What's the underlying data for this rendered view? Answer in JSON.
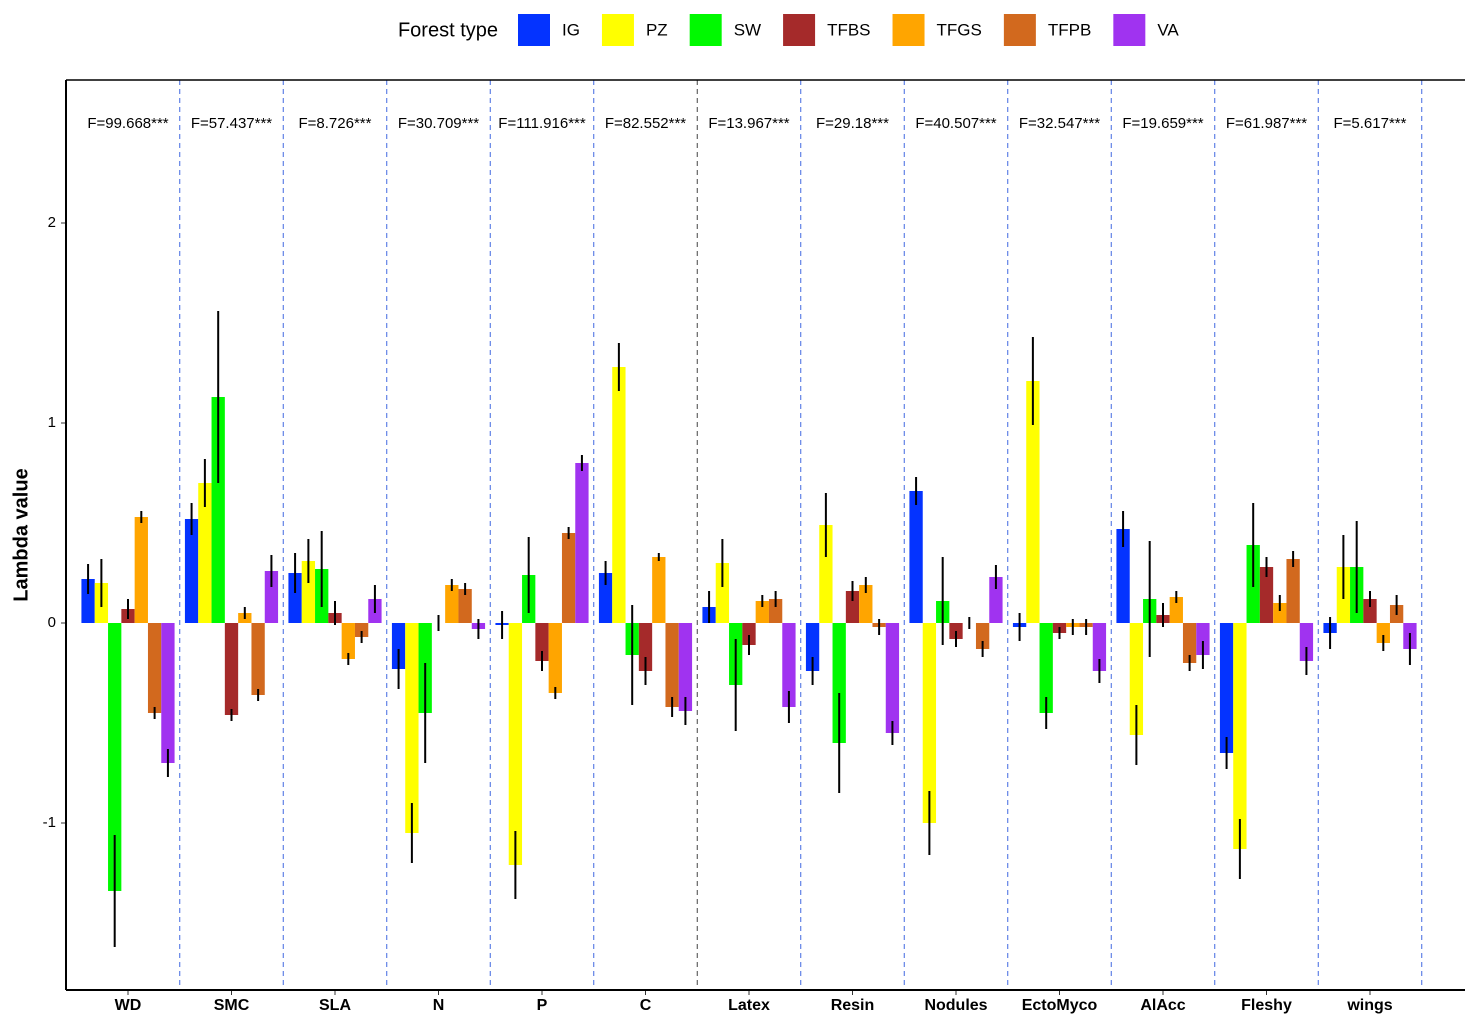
{
  "chart_data": {
    "type": "bar",
    "y_label": "Lambda value",
    "legend_title": "Forest type",
    "legend_position": "top",
    "categories": [
      "WD",
      "SMC",
      "SLA",
      "N",
      "P",
      "C",
      "Latex",
      "Resin",
      "Nodules",
      "EctoMyco",
      "AlAcc",
      "Fleshy",
      "wings"
    ],
    "annotations": [
      "F=99.668***",
      "F=57.437***",
      "F=8.726***",
      "F=30.709***",
      "F=111.916***",
      "F=82.552***",
      "F=13.967***",
      "F=29.18***",
      "F=40.507***",
      "F=32.547***",
      "F=19.659***",
      "F=61.987***",
      "F=5.617***"
    ],
    "ylim": [
      -1.835,
      2.715
    ],
    "yticks": [
      -1,
      0,
      1,
      2
    ],
    "series": [
      {
        "name": "IG",
        "color": "#0433ff",
        "values": [
          0.22,
          0.52,
          0.25,
          -0.23,
          -0.01,
          0.25,
          0.08,
          -0.24,
          0.66,
          -0.02,
          0.47,
          -0.65,
          -0.05
        ],
        "errors": [
          0.075,
          0.08,
          0.1,
          0.1,
          0.07,
          0.06,
          0.08,
          0.07,
          0.07,
          0.07,
          0.09,
          0.08,
          0.08
        ]
      },
      {
        "name": "PZ",
        "color": "#ffff00",
        "values": [
          0.2,
          0.7,
          0.31,
          -1.05,
          -1.21,
          1.28,
          0.3,
          0.49,
          -1.0,
          1.21,
          -0.56,
          -1.13,
          0.28
        ],
        "errors": [
          0.12,
          0.12,
          0.11,
          0.15,
          0.17,
          0.12,
          0.12,
          0.16,
          0.16,
          0.22,
          0.15,
          0.15,
          0.16
        ]
      },
      {
        "name": "SW",
        "color": "#00f900",
        "values": [
          -1.34,
          1.13,
          0.27,
          -0.45,
          0.24,
          -0.16,
          -0.31,
          -0.6,
          0.11,
          -0.45,
          0.12,
          0.39,
          0.28
        ],
        "errors": [
          0.28,
          0.43,
          0.19,
          0.25,
          0.19,
          0.25,
          0.23,
          0.25,
          0.22,
          0.08,
          0.29,
          0.21,
          0.23
        ]
      },
      {
        "name": "TFBS",
        "color": "#a52a2a",
        "values": [
          0.07,
          -0.46,
          0.05,
          0.0,
          -0.19,
          -0.24,
          -0.11,
          0.16,
          -0.08,
          -0.05,
          0.04,
          0.28,
          0.12
        ],
        "errors": [
          0.05,
          0.03,
          0.06,
          0.04,
          0.05,
          0.07,
          0.05,
          0.05,
          0.04,
          0.03,
          0.06,
          0.05,
          0.04
        ]
      },
      {
        "name": "TFGS",
        "color": "#ffa500",
        "values": [
          0.53,
          0.05,
          -0.18,
          0.19,
          -0.35,
          0.33,
          0.11,
          0.19,
          0.0,
          -0.02,
          0.13,
          0.1,
          -0.1
        ],
        "errors": [
          0.03,
          0.03,
          0.03,
          0.03,
          0.03,
          0.02,
          0.03,
          0.04,
          0.03,
          0.04,
          0.03,
          0.04,
          0.04
        ]
      },
      {
        "name": "TFPB",
        "color": "#d2691e",
        "values": [
          -0.45,
          -0.36,
          -0.07,
          0.17,
          0.45,
          -0.42,
          0.12,
          -0.02,
          -0.13,
          -0.02,
          -0.2,
          0.32,
          0.09
        ],
        "errors": [
          0.03,
          0.03,
          0.03,
          0.03,
          0.03,
          0.05,
          0.04,
          0.04,
          0.04,
          0.04,
          0.04,
          0.04,
          0.05
        ]
      },
      {
        "name": "VA",
        "color": "#a033f0",
        "values": [
          -0.7,
          0.26,
          0.12,
          -0.03,
          0.8,
          -0.44,
          -0.42,
          -0.55,
          0.23,
          -0.24,
          -0.16,
          -0.19,
          -0.13
        ],
        "errors": [
          0.07,
          0.08,
          0.07,
          0.05,
          0.04,
          0.07,
          0.08,
          0.06,
          0.06,
          0.06,
          0.07,
          0.07,
          0.08
        ]
      }
    ]
  }
}
